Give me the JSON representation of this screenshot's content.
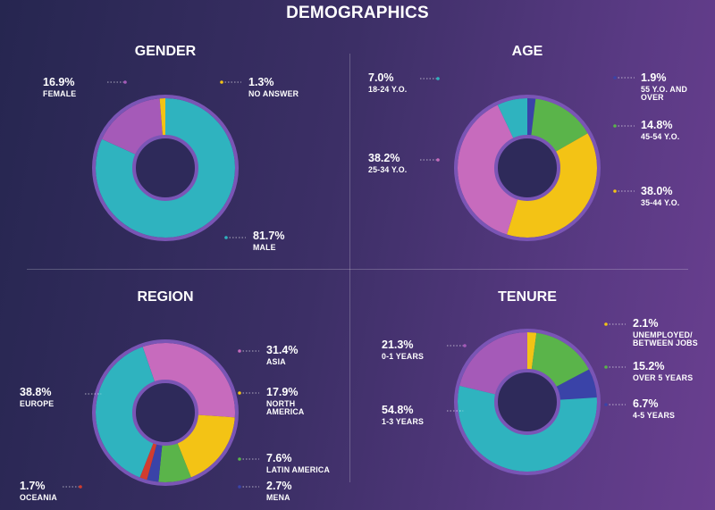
{
  "title": "DEMOGRAPHICS",
  "colors": {
    "teal": "#2fb3bf",
    "purple": "#a55ab8",
    "yellow": "#f3c315",
    "blue": "#3a43a8",
    "green": "#5ab44a",
    "pink": "#c76bbd",
    "red": "#d23c2e",
    "ring": "#7a55b5"
  },
  "chart_data": [
    {
      "type": "pie",
      "title": "GENDER",
      "series": [
        {
          "label": "MALE",
          "value": 81.7,
          "display": "81.7%",
          "color": "teal"
        },
        {
          "label": "FEMALE",
          "value": 16.9,
          "display": "16.9%",
          "color": "purple"
        },
        {
          "label": "NO ANSWER",
          "value": 1.3,
          "display": "1.3%",
          "color": "yellow"
        }
      ]
    },
    {
      "type": "pie",
      "title": "AGE",
      "series": [
        {
          "label": "55 Y.O. AND OVER",
          "value": 1.9,
          "display": "1.9%",
          "color": "blue"
        },
        {
          "label": "45-54 Y.O.",
          "value": 14.8,
          "display": "14.8%",
          "color": "green"
        },
        {
          "label": "35-44 Y.O.",
          "value": 38.0,
          "display": "38.0%",
          "color": "yellow"
        },
        {
          "label": "25-34 Y.O.",
          "value": 38.2,
          "display": "38.2%",
          "color": "pink"
        },
        {
          "label": "18-24 Y.O.",
          "value": 7.0,
          "display": "7.0%",
          "color": "teal"
        }
      ]
    },
    {
      "type": "pie",
      "title": "REGION",
      "series": [
        {
          "label": "ASIA",
          "value": 31.4,
          "display": "31.4%",
          "color": "pink"
        },
        {
          "label": "NORTH AMERICA",
          "value": 17.9,
          "display": "17.9%",
          "color": "yellow"
        },
        {
          "label": "LATIN AMERICA",
          "value": 7.6,
          "display": "7.6%",
          "color": "green"
        },
        {
          "label": "MENA",
          "value": 2.7,
          "display": "2.7%",
          "color": "blue"
        },
        {
          "label": "OCEANIA",
          "value": 1.7,
          "display": "1.7%",
          "color": "red"
        },
        {
          "label": "EUROPE",
          "value": 38.8,
          "display": "38.8%",
          "color": "teal"
        }
      ]
    },
    {
      "type": "pie",
      "title": "TENURE",
      "series": [
        {
          "label": "UNEMPLOYED/ BETWEEN JOBS",
          "value": 2.1,
          "display": "2.1%",
          "color": "yellow"
        },
        {
          "label": "OVER 5 YEARS",
          "value": 15.2,
          "display": "15.2%",
          "color": "green"
        },
        {
          "label": "4-5 YEARS",
          "value": 6.7,
          "display": "6.7%",
          "color": "blue"
        },
        {
          "label": "1-3 YEARS",
          "value": 54.8,
          "display": "54.8%",
          "color": "teal"
        },
        {
          "label": "0-1 YEARS",
          "value": 21.3,
          "display": "21.3%",
          "color": "purple"
        }
      ]
    }
  ]
}
